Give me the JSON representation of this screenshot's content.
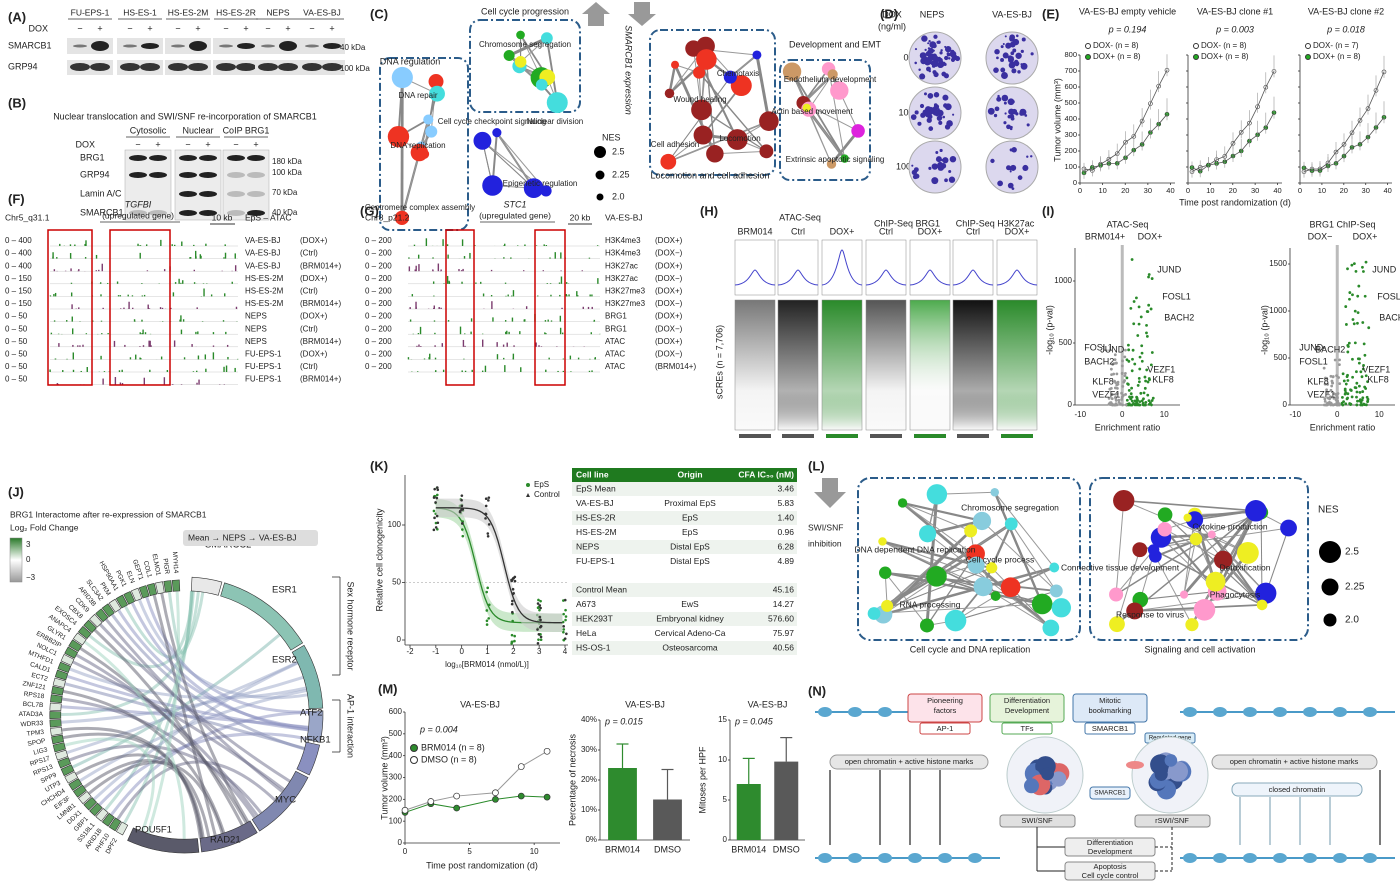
{
  "panels": {
    "A": {
      "label": "(A)",
      "lanes": [
        "FU-EPS-1",
        "HS-ES-1",
        "HS-ES-2M",
        "HS-ES-2R",
        "NEPS",
        "VA-ES-BJ"
      ],
      "dox": "DOX",
      "signs": [
        "−",
        "+"
      ],
      "rows": [
        "SMARCB1",
        "GRP94"
      ],
      "kda": [
        "40 kDa",
        "100 kDa"
      ]
    },
    "B": {
      "label": "(B)",
      "title": "Nuclear translocation and SWI/SNF re-incorporation of SMARCB1",
      "fractions": [
        "Cytosolic",
        "Nuclear",
        "CoIP BRG1"
      ],
      "dox": "DOX",
      "rows": [
        "BRG1",
        "GRP94",
        "Lamin A/C",
        "SMARCB1"
      ],
      "kda": [
        "180 kDa",
        "100 kDa",
        "70 kDa",
        "40 kDa"
      ]
    },
    "C": {
      "label": "(C)",
      "clusters": [
        "Cell cycle progression",
        "DNA regulation",
        "Development and EMT",
        "Locomotion and cell adhesion"
      ],
      "nodes": [
        "Chromosome segregation",
        "Cell cycle checkpoint signaling",
        "Nuclear division",
        "DNA repair",
        "DNA replication",
        "Centromere complex assembly",
        "Epigenetic regulation",
        "Chemotaxis",
        "Wound healing",
        "Locomotion",
        "Cell adhesion",
        "Endothelium development",
        "Actin based movement",
        "Extrinsic apoptotic signaling"
      ],
      "axis": "SMARCB1 expression",
      "nes_title": "NES",
      "nes": [
        "2.5",
        "2.25",
        "2.0"
      ]
    },
    "D": {
      "label": "(D)",
      "dox": "DOX",
      "unit": "(ng/ml)",
      "lines": [
        "NEPS",
        "VA-ES-BJ"
      ],
      "doses": [
        "0",
        "100",
        "1000"
      ]
    },
    "E": {
      "label": "(E)",
      "titles": [
        "VA-ES-BJ empty vehicle",
        "VA-ES-BJ clone #1",
        "VA-ES-BJ clone #2"
      ],
      "p": [
        "p = 0.194",
        "p = 0.003",
        "p = 0.018"
      ],
      "legends": [
        [
          "DOX- (n = 8)",
          "DOX+ (n = 8)"
        ],
        [
          "DOX- (n = 8)",
          "DOX+ (n = 8)"
        ],
        [
          "DOX- (n = 7)",
          "DOX+ (n = 8)"
        ]
      ],
      "ylabel": "Tumor volume (mm³)",
      "xlabel": "Time post randomization (d)",
      "yticks": [
        0,
        100,
        200,
        300,
        400,
        500,
        600,
        700,
        800
      ],
      "xticks": [
        0,
        10,
        20,
        30,
        40
      ]
    },
    "F": {
      "label": "(F)",
      "region": "Chr5_q31.1",
      "gene": "TGFBI",
      "note": "(upregulated gene)",
      "scale": "10 kb",
      "track": "EpS – ATAC",
      "rows": [
        [
          "0 – 400",
          "VA-ES-BJ",
          "(DOX+)"
        ],
        [
          "0 – 400",
          "VA-ES-BJ",
          "(Ctrl)"
        ],
        [
          "0 – 400",
          "VA-ES-BJ",
          "(BRM014+)"
        ],
        [
          "0 – 150",
          "HS-ES-2M",
          "(DOX+)"
        ],
        [
          "0 – 150",
          "HS-ES-2M",
          "(Ctrl)"
        ],
        [
          "0 – 150",
          "HS-ES-2M",
          "(BRM014+)"
        ],
        [
          "0 – 50",
          "NEPS",
          "(DOX+)"
        ],
        [
          "0 – 50",
          "NEPS",
          "(Ctrl)"
        ],
        [
          "0 – 50",
          "NEPS",
          "(BRM014+)"
        ],
        [
          "0 – 50",
          "FU-EPS-1",
          "(DOX+)"
        ],
        [
          "0 – 50",
          "FU-EPS-1",
          "(Ctrl)"
        ],
        [
          "0 – 50",
          "FU-EPS-1",
          "(BRM014+)"
        ]
      ]
    },
    "G": {
      "label": "(G)",
      "region": "Chr8_p21.2",
      "gene": "STC1",
      "note": "(upregulated gene)",
      "scale": "20 kb",
      "track": "VA-ES-BJ",
      "rows": [
        [
          "0 – 200",
          "H3K4me3",
          "(DOX+)"
        ],
        [
          "0 – 200",
          "H3K4me3",
          "(DOX−)"
        ],
        [
          "0 – 200",
          "H3K27ac",
          "(DOX+)"
        ],
        [
          "0 – 200",
          "H3K27ac",
          "(DOX−)"
        ],
        [
          "0 – 200",
          "H3K27me3",
          "(DOX+)"
        ],
        [
          "0 – 200",
          "H3K27me3",
          "(DOX−)"
        ],
        [
          "0 – 200",
          "BRG1",
          "(DOX+)"
        ],
        [
          "0 – 200",
          "BRG1",
          "(DOX−)"
        ],
        [
          "0 – 200",
          "ATAC",
          "(DOX+)"
        ],
        [
          "0 – 200",
          "ATAC",
          "(DOX−)"
        ],
        [
          "0 – 200",
          "ATAC",
          "(BRM014+)"
        ]
      ]
    },
    "H": {
      "label": "(H)",
      "groups": [
        "ATAC-Seq",
        "ChIP-Seq BRG1",
        "ChIP-Seq H3K27ac"
      ],
      "columns": [
        "BRM014",
        "Ctrl",
        "DOX+",
        "Ctrl",
        "DOX+",
        "Ctrl",
        "DOX+"
      ],
      "ylabel": "sCREs (n = 7,706)"
    },
    "I": {
      "label": "(I)",
      "plots": [
        {
          "title": "ATAC-Seq",
          "sides": [
            "BRM014+",
            "DOX+"
          ],
          "genes": [
            "JUND",
            "FOSL1",
            "BACH2",
            "FOSL1",
            "BACH2",
            "JUND",
            "VEZF1",
            "KLF8",
            "KLF8",
            "VEZF1"
          ],
          "yticks": [
            "0",
            "500",
            "1000"
          ]
        },
        {
          "title": "BRG1 ChIP-Seq",
          "sides": [
            "DOX−",
            "DOX+"
          ],
          "genes": [
            "JUND",
            "FOSL1",
            "BACH2",
            "JUND",
            "FOSL1",
            "BACH2",
            "VEZF1",
            "KLF8",
            "KLF8",
            "VEZF1"
          ],
          "yticks": [
            "0",
            "500",
            "1000",
            "1500"
          ]
        }
      ],
      "xticks": [
        "-10",
        "0",
        "10"
      ],
      "xlabel": "Enrichment ratio",
      "ylabel": "-log₁₀ (p-val)"
    },
    "J": {
      "label": "(J)",
      "title": "BRG1 Interactome after re-expression of SMARCB1",
      "legend": "Log₂ Fold Change",
      "scale": [
        "3",
        "0",
        "−3"
      ],
      "order": "Mean → NEPS → VA-ES-BJ",
      "targets": [
        "SMARCC2",
        "ESR1",
        "ESR2",
        "ATF2",
        "NFKB1",
        "MYC",
        "RAD21",
        "POU5F1"
      ],
      "groups": [
        "Sex hormone receptor",
        "AP-1 interaction"
      ],
      "genes": [
        "DPF2",
        "PHF10",
        "ARID1B",
        "SS18L1",
        "GBP1",
        "DDX1",
        "LMNB1",
        "EIF3F",
        "CHCHD4",
        "UTP3",
        "SPP9",
        "RPS13",
        "RPS17",
        "LIG3",
        "SPOP",
        "TPM3",
        "WDR33",
        "ATAD3A",
        "BCL7B",
        "RPS18",
        "ZNF121",
        "ECT2",
        "CALD1",
        "MTHFD1",
        "NOLC1",
        "ERBB2IP",
        "GLYR1",
        "ANAPC4",
        "EXOSC4",
        "CBX8",
        "CDK9",
        "ARID3B",
        "SLC3A2",
        "PKM",
        "HSP90AA1",
        "PGK1",
        "ELN",
        "GEPT1",
        "COL1",
        "ELMO1",
        "PIGR",
        "MYH14"
      ]
    },
    "K": {
      "label": "(K)",
      "legend": [
        "EpS",
        "Control"
      ],
      "ylabel": "Relative cell clonogenicity",
      "yticks": [
        0,
        50,
        100
      ],
      "xticks": [
        -2,
        -1,
        0,
        1,
        2,
        3,
        4
      ],
      "xlabel": "log₁₀[BRM014 (nmol/L)]",
      "header": [
        "Cell line",
        "Origin",
        "CFA IC₅₀ (nM)"
      ],
      "rows_eps": [
        [
          "EpS Mean",
          "",
          "3.46"
        ],
        [
          "VA-ES-BJ",
          "Proximal EpS",
          "5.83"
        ],
        [
          "HS-ES-2R",
          "EpS",
          "1.40"
        ],
        [
          "HS-ES-2M",
          "EpS",
          "0.96"
        ],
        [
          "NEPS",
          "Distal EpS",
          "6.28"
        ],
        [
          "FU-EPS-1",
          "Distal EpS",
          "4.89"
        ]
      ],
      "rows_control": [
        [
          "Control Mean",
          "",
          "45.16"
        ],
        [
          "A673",
          "EwS",
          "14.27"
        ],
        [
          "HEK293T",
          "Embryonal kidney",
          "576.60"
        ],
        [
          "HeLa",
          "Cervical Adeno-Ca",
          "75.97"
        ],
        [
          "HS-OS-1",
          "Osteosarcoma",
          "40.56"
        ]
      ]
    },
    "L": {
      "label": "(L)",
      "arrow": [
        "SWI/SNF",
        "inhibition"
      ],
      "clusters": [
        "Cell cycle and DNA replication",
        "Signaling and cell activation"
      ],
      "nodes": [
        "Chromosome segregation",
        "DNA dependent DNA replication",
        "Cell cycle process",
        "RNA processing",
        "Cytokine production",
        "Detoxification",
        "Connective tissue development",
        "Phagocytosis",
        "Response to virus"
      ],
      "nes_title": "NES",
      "nes": [
        "2.5",
        "2.25",
        "2.0"
      ]
    },
    "M": {
      "label": "(M)",
      "tumor": {
        "title": "VA-ES-BJ",
        "p": "p = 0.004",
        "ylabel": "Tumor volume (mm³)",
        "xlabel": "Time post randomization (d)",
        "x": [
          0,
          2,
          4,
          7,
          9,
          11
        ],
        "series": [
          {
            "name": "BRM014 (n = 8)",
            "color": "#2e8b2e",
            "values": [
              140,
              180,
              160,
              200,
              215,
              210
            ]
          },
          {
            "name": "DMSO (n = 8)",
            "color": "#ffffff",
            "values": [
              150,
              190,
              215,
              230,
              350,
              420
            ]
          }
        ],
        "ylim": [
          0,
          600
        ],
        "yticks": [
          0,
          100,
          200,
          300,
          400,
          500,
          600
        ],
        "xlim": [
          0,
          12
        ],
        "xticks": [
          0,
          5,
          10
        ]
      },
      "necrosis": {
        "title": "VA-ES-BJ",
        "p": "p = 0.015",
        "ylabel": "Percentage of necrosis",
        "categories": [
          "BRM014",
          "DMSO"
        ],
        "values": [
          24,
          13.5
        ],
        "errors": [
          8,
          10
        ],
        "colors": [
          "#2e8b2e",
          "#595959"
        ],
        "ylim": [
          0,
          40
        ],
        "yticks": [
          {
            "value": 0,
            "label": "0%"
          },
          {
            "value": 10,
            "label": "10%"
          },
          {
            "value": 20,
            "label": "20%"
          },
          {
            "value": 30,
            "label": "30%"
          },
          {
            "value": 40,
            "label": "40%"
          }
        ]
      },
      "mitoses": {
        "title": "VA-ES-BJ",
        "p": "p = 0.045",
        "ylabel": "Mitoses per HPF",
        "categories": [
          "BRM014",
          "DMSO"
        ],
        "values": [
          7,
          9.8
        ],
        "errors": [
          3.2,
          3
        ],
        "colors": [
          "#2e8b2e",
          "#595959"
        ],
        "ylim": [
          0,
          15
        ],
        "yticks": [
          0,
          5,
          10,
          15
        ]
      }
    },
    "N": {
      "label": "(N)",
      "top": [
        [
          "Pioneering",
          "factors",
          "AP-1"
        ],
        [
          "Differentiation",
          "Development",
          "TFs"
        ],
        [
          "Mitotic",
          "bookmarking",
          "SMARCB1"
        ]
      ],
      "regulated": "Regulated gene",
      "open": "open chromatin + active histone marks",
      "closed": "closed chromatin",
      "smarcb1": "SMARCB1",
      "complexes": [
        "SWI/SNF",
        "rSWI/SNF"
      ],
      "outcomes": [
        [
          "Differentiation",
          "Development"
        ],
        [
          "Apoptosis",
          "Cell cycle control"
        ]
      ]
    }
  }
}
